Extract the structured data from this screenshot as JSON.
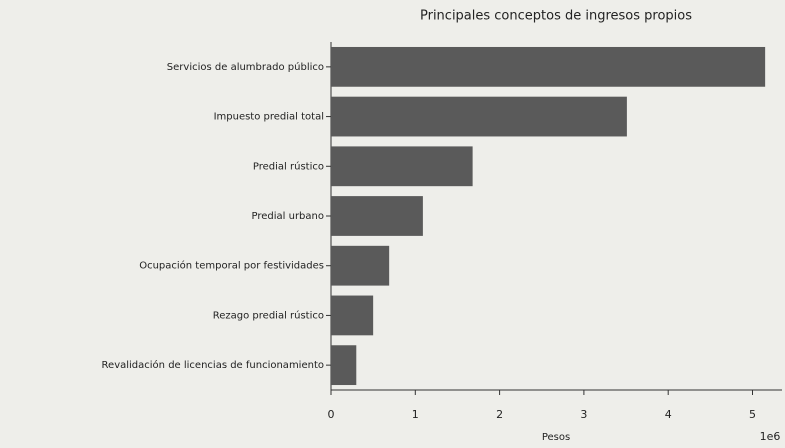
{
  "chart_data": {
    "type": "barh",
    "title": "Principales conceptos de ingresos propios",
    "categories": [
      "Servicios de alumbrado público",
      "Impuesto predial total",
      "Predial rústico",
      "Predial urbano",
      "Ocupación temporal por festividades",
      "Rezago predial rústico",
      "Revalidación de licencias de funcionamiento"
    ],
    "values": [
      5.15,
      3.51,
      1.68,
      1.09,
      0.69,
      0.5,
      0.3
    ],
    "color": "#5a5a5a",
    "xlabel": "Pesos",
    "offset_label": "1e6",
    "xlim": [
      0,
      5.35
    ],
    "xticks": [
      0,
      1,
      2,
      3,
      4,
      5
    ]
  }
}
